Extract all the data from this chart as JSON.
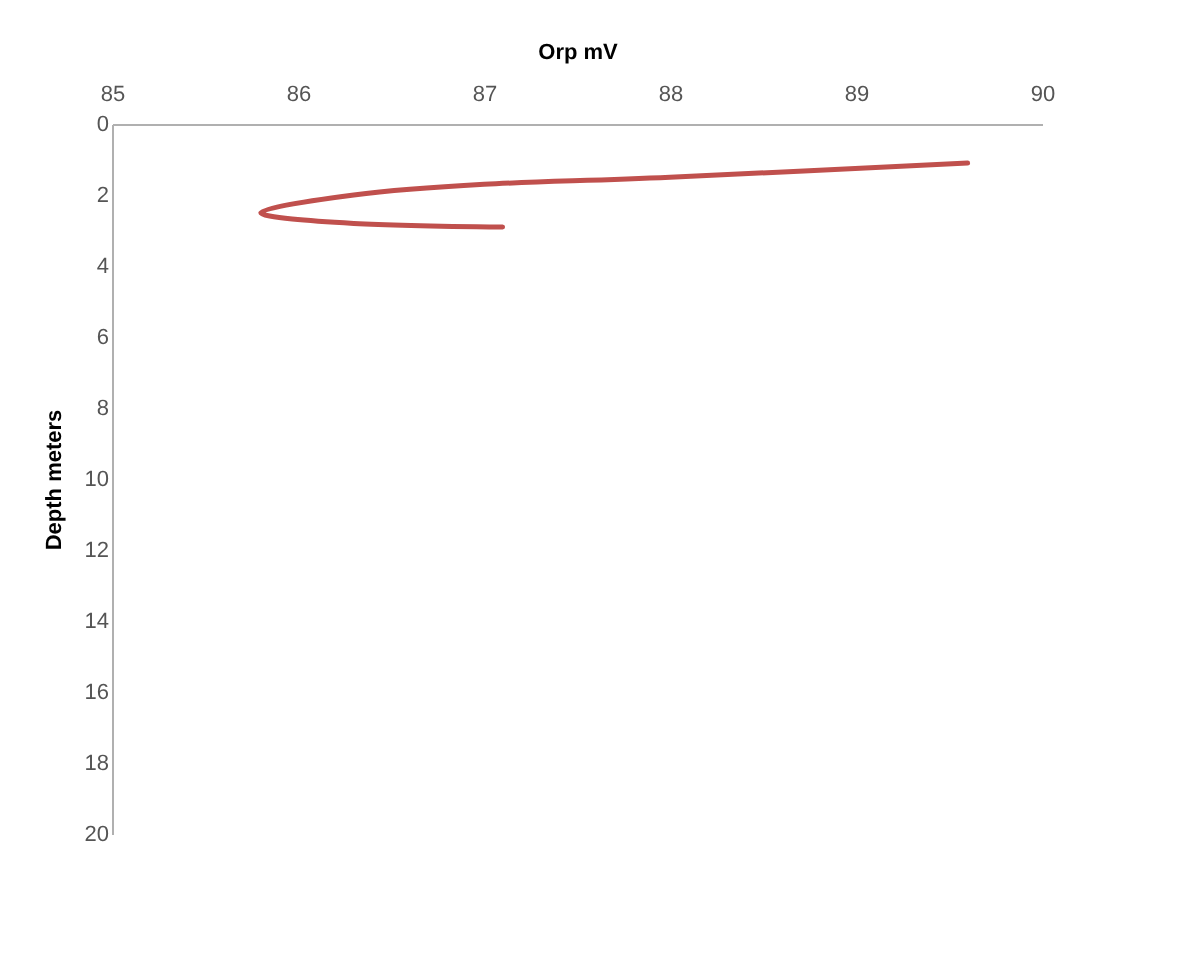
{
  "chart_data": {
    "type": "line",
    "xlabel": "Orp mV",
    "ylabel": "Depth meters",
    "x": [
      89.6,
      88.0,
      87.0,
      86.3,
      85.8,
      86.3,
      87.1
    ],
    "series": [
      {
        "color": "#c0504d",
        "values": [
          1.1,
          1.5,
          1.7,
          2.0,
          2.5,
          2.8,
          2.9
        ]
      }
    ],
    "xlim": [
      85,
      90
    ],
    "xticks": [
      85,
      86,
      87,
      88,
      89,
      90
    ],
    "ylim": [
      20,
      0
    ],
    "yticks": [
      0,
      2,
      4,
      6,
      8,
      10,
      12,
      14,
      16,
      18,
      20
    ],
    "grid": false,
    "marker": "none",
    "line_style": "solid"
  }
}
